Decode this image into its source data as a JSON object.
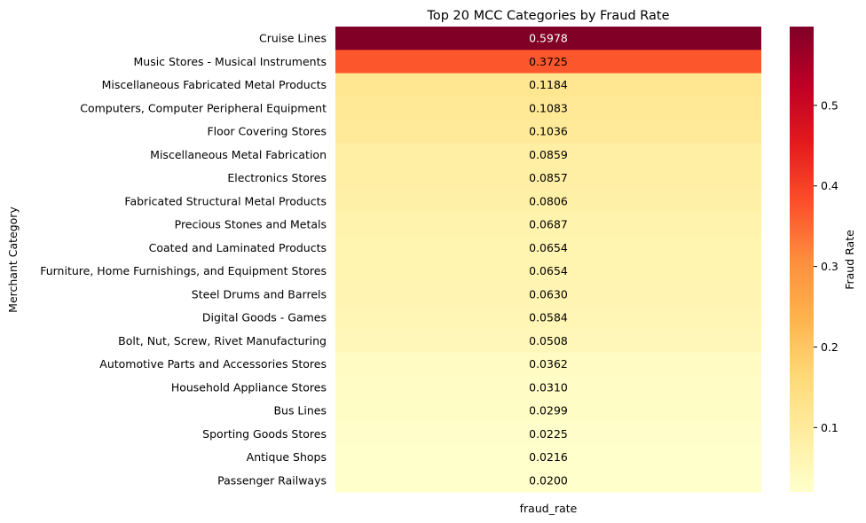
{
  "chart_data": {
    "type": "heatmap",
    "title": "Top 20 MCC Categories by Fraud Rate",
    "xlabel": "",
    "ylabel": "Merchant Category",
    "x_categories": [
      "fraud_rate"
    ],
    "y_categories": [
      "Cruise Lines",
      "Music Stores - Musical Instruments",
      "Miscellaneous Fabricated Metal Products",
      "Computers, Computer Peripheral Equipment",
      "Floor Covering Stores",
      "Miscellaneous Metal Fabrication",
      "Electronics Stores",
      "Fabricated Structural Metal Products",
      "Precious Stones and Metals",
      "Coated and Laminated Products",
      "Furniture, Home Furnishings, and Equipment Stores",
      "Steel Drums and Barrels",
      "Digital Goods - Games",
      "Bolt, Nut, Screw, Rivet Manufacturing",
      "Automotive Parts and Accessories Stores",
      "Household Appliance Stores",
      "Bus Lines",
      "Sporting Goods Stores",
      "Antique Shops",
      "Passenger Railways"
    ],
    "values": [
      0.5978,
      0.3725,
      0.1184,
      0.1083,
      0.1036,
      0.0859,
      0.0857,
      0.0806,
      0.0687,
      0.0654,
      0.0654,
      0.063,
      0.0584,
      0.0508,
      0.0362,
      0.031,
      0.0299,
      0.0225,
      0.0216,
      0.02
    ],
    "annotations": [
      "0.5978",
      "0.3725",
      "0.1184",
      "0.1083",
      "0.1036",
      "0.0859",
      "0.0857",
      "0.0806",
      "0.0687",
      "0.0654",
      "0.0654",
      "0.0630",
      "0.0584",
      "0.0508",
      "0.0362",
      "0.0310",
      "0.0299",
      "0.0225",
      "0.0216",
      "0.0200"
    ],
    "colormap": "YlOrRd",
    "colormap_stops": [
      "#ffffcc",
      "#ffeda0",
      "#fed976",
      "#feb24c",
      "#fd8d3c",
      "#fc4e2a",
      "#e31a1c",
      "#bd0026",
      "#800026"
    ],
    "vmin": 0.02,
    "vmax": 0.5978,
    "colorbar": {
      "label": "Fraud Rate",
      "ticks": [
        0.1,
        0.2,
        0.3,
        0.4,
        0.5
      ],
      "tick_labels": [
        "0.1",
        "0.2",
        "0.3",
        "0.4",
        "0.5"
      ]
    },
    "grid": false
  }
}
